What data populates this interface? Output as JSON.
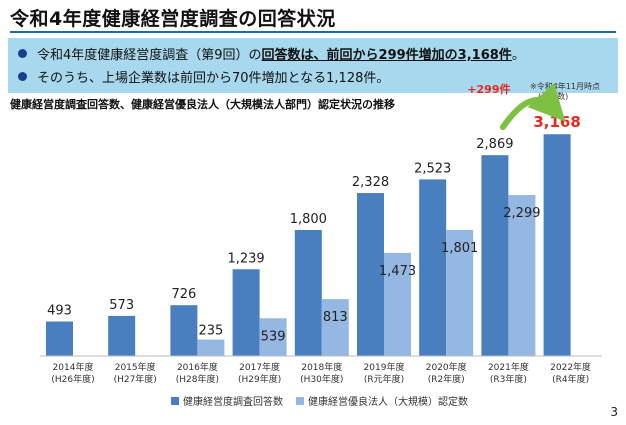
{
  "page": {
    "title": "令和4年度健康経営度調査の回答状況",
    "bullets": [
      {
        "pre": "令和4年度健康経営度調査（第9回）の",
        "em": "回答数は、前回から299件増加の3,168件",
        "post": "。"
      },
      {
        "pre": "そのうち、上場企業数は前回から70件増加となる1,128件。",
        "em": "",
        "post": ""
      }
    ],
    "chart_subtitle": "健康経営度調査回答数、健康経営優良法人（大規模法人部門）認定状況の推移",
    "note_line1": "※令和4年11月時点",
    "note_line2": "(法人数)",
    "page_number": "3"
  },
  "colors": {
    "responses": "#4a7fbf",
    "certified": "#95b8e2",
    "highlight": "#e8281e",
    "arrow": "#7dc142"
  },
  "chart_data": {
    "type": "bar",
    "title": "",
    "categories": [
      "2014年度",
      "2015年度",
      "2016年度",
      "2017年度",
      "2018年度",
      "2019年度",
      "2020年度",
      "2021年度",
      "2022年度"
    ],
    "category_sublabels": [
      "(H26年度)",
      "(H27年度)",
      "(H28年度)",
      "(H29年度)",
      "(H30年度)",
      "(R元年度)",
      "(R2年度)",
      "(R3年度)",
      "(R4年度)"
    ],
    "series": [
      {
        "name": "健康経営度調査回答数",
        "values": [
          493,
          573,
          726,
          1239,
          1800,
          2328,
          2523,
          2869,
          3168
        ],
        "labels": [
          "493",
          "573",
          "726",
          "1,239",
          "1,800",
          "2,328",
          "2,523",
          "2,869",
          "3,168"
        ]
      },
      {
        "name": "健康経営優良法人（大規模）認定数",
        "values": [
          null,
          null,
          235,
          539,
          813,
          1473,
          1801,
          2299,
          null
        ],
        "labels": [
          "",
          "",
          "235",
          "539",
          "813",
          "1,473",
          "1,801",
          "2,299",
          ""
        ]
      }
    ],
    "annotation": "+299件",
    "ylim": [
      0,
      3400
    ],
    "grid": false,
    "legend": "bottom-center"
  }
}
